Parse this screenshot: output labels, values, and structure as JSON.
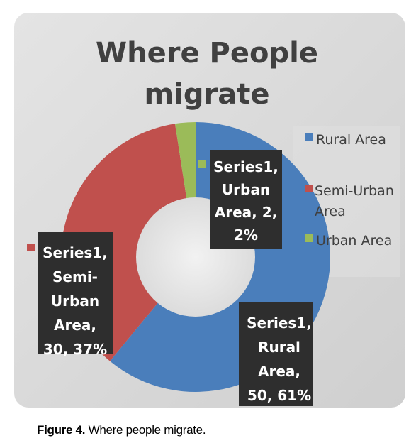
{
  "chart_data": {
    "type": "pie",
    "style": "doughnut",
    "title_lines": [
      "Where People",
      "migrate"
    ],
    "series_name": "Series1",
    "categories": [
      "Rural Area",
      "Semi-Urban Area",
      "Urban Area"
    ],
    "values": [
      50,
      30,
      2
    ],
    "percents": [
      "61%",
      "37%",
      "2%"
    ],
    "colors": [
      "#4a7ebb",
      "#c0504d",
      "#9bbb59"
    ],
    "legend_position": "right",
    "legend": [
      {
        "lines": [
          "Rural Area"
        ]
      },
      {
        "lines": [
          "Semi-Urban",
          "Area"
        ]
      },
      {
        "lines": [
          "Urban Area"
        ]
      }
    ],
    "data_labels": [
      {
        "lines": [
          "Series1,",
          "Rural",
          "Area,",
          "50, 61%"
        ]
      },
      {
        "lines": [
          "Series1,",
          "Semi-",
          "Urban",
          "Area,",
          "30, 37%"
        ]
      },
      {
        "lines": [
          "Series1,",
          "Urban",
          "Area, 2,",
          "2%"
        ]
      }
    ]
  },
  "caption": {
    "figure_number": "Figure 4.",
    "text": " Where people migrate."
  }
}
